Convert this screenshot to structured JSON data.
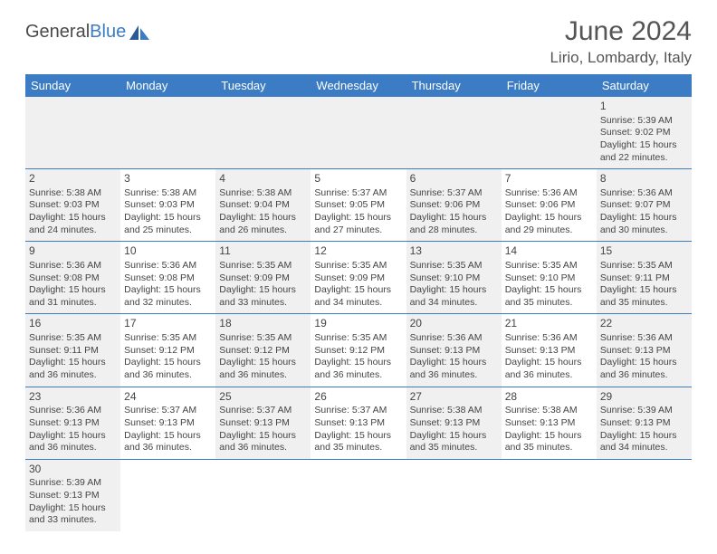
{
  "brand": {
    "part1": "General",
    "part2": "Blue"
  },
  "title": "June 2024",
  "location": "Lirio, Lombardy, Italy",
  "colors": {
    "header_bg": "#3b7cc4",
    "header_text": "#ffffff",
    "row_alt_bg": "#f0f0f0",
    "border": "#3b7cc4",
    "text": "#444444"
  },
  "weekdays": [
    "Sunday",
    "Monday",
    "Tuesday",
    "Wednesday",
    "Thursday",
    "Friday",
    "Saturday"
  ],
  "first_weekday_index": 6,
  "days": [
    {
      "n": 1,
      "sunrise": "5:39 AM",
      "sunset": "9:02 PM",
      "daylight": "15 hours and 22 minutes."
    },
    {
      "n": 2,
      "sunrise": "5:38 AM",
      "sunset": "9:03 PM",
      "daylight": "15 hours and 24 minutes."
    },
    {
      "n": 3,
      "sunrise": "5:38 AM",
      "sunset": "9:03 PM",
      "daylight": "15 hours and 25 minutes."
    },
    {
      "n": 4,
      "sunrise": "5:38 AM",
      "sunset": "9:04 PM",
      "daylight": "15 hours and 26 minutes."
    },
    {
      "n": 5,
      "sunrise": "5:37 AM",
      "sunset": "9:05 PM",
      "daylight": "15 hours and 27 minutes."
    },
    {
      "n": 6,
      "sunrise": "5:37 AM",
      "sunset": "9:06 PM",
      "daylight": "15 hours and 28 minutes."
    },
    {
      "n": 7,
      "sunrise": "5:36 AM",
      "sunset": "9:06 PM",
      "daylight": "15 hours and 29 minutes."
    },
    {
      "n": 8,
      "sunrise": "5:36 AM",
      "sunset": "9:07 PM",
      "daylight": "15 hours and 30 minutes."
    },
    {
      "n": 9,
      "sunrise": "5:36 AM",
      "sunset": "9:08 PM",
      "daylight": "15 hours and 31 minutes."
    },
    {
      "n": 10,
      "sunrise": "5:36 AM",
      "sunset": "9:08 PM",
      "daylight": "15 hours and 32 minutes."
    },
    {
      "n": 11,
      "sunrise": "5:35 AM",
      "sunset": "9:09 PM",
      "daylight": "15 hours and 33 minutes."
    },
    {
      "n": 12,
      "sunrise": "5:35 AM",
      "sunset": "9:09 PM",
      "daylight": "15 hours and 34 minutes."
    },
    {
      "n": 13,
      "sunrise": "5:35 AM",
      "sunset": "9:10 PM",
      "daylight": "15 hours and 34 minutes."
    },
    {
      "n": 14,
      "sunrise": "5:35 AM",
      "sunset": "9:10 PM",
      "daylight": "15 hours and 35 minutes."
    },
    {
      "n": 15,
      "sunrise": "5:35 AM",
      "sunset": "9:11 PM",
      "daylight": "15 hours and 35 minutes."
    },
    {
      "n": 16,
      "sunrise": "5:35 AM",
      "sunset": "9:11 PM",
      "daylight": "15 hours and 36 minutes."
    },
    {
      "n": 17,
      "sunrise": "5:35 AM",
      "sunset": "9:12 PM",
      "daylight": "15 hours and 36 minutes."
    },
    {
      "n": 18,
      "sunrise": "5:35 AM",
      "sunset": "9:12 PM",
      "daylight": "15 hours and 36 minutes."
    },
    {
      "n": 19,
      "sunrise": "5:35 AM",
      "sunset": "9:12 PM",
      "daylight": "15 hours and 36 minutes."
    },
    {
      "n": 20,
      "sunrise": "5:36 AM",
      "sunset": "9:13 PM",
      "daylight": "15 hours and 36 minutes."
    },
    {
      "n": 21,
      "sunrise": "5:36 AM",
      "sunset": "9:13 PM",
      "daylight": "15 hours and 36 minutes."
    },
    {
      "n": 22,
      "sunrise": "5:36 AM",
      "sunset": "9:13 PM",
      "daylight": "15 hours and 36 minutes."
    },
    {
      "n": 23,
      "sunrise": "5:36 AM",
      "sunset": "9:13 PM",
      "daylight": "15 hours and 36 minutes."
    },
    {
      "n": 24,
      "sunrise": "5:37 AM",
      "sunset": "9:13 PM",
      "daylight": "15 hours and 36 minutes."
    },
    {
      "n": 25,
      "sunrise": "5:37 AM",
      "sunset": "9:13 PM",
      "daylight": "15 hours and 36 minutes."
    },
    {
      "n": 26,
      "sunrise": "5:37 AM",
      "sunset": "9:13 PM",
      "daylight": "15 hours and 35 minutes."
    },
    {
      "n": 27,
      "sunrise": "5:38 AM",
      "sunset": "9:13 PM",
      "daylight": "15 hours and 35 minutes."
    },
    {
      "n": 28,
      "sunrise": "5:38 AM",
      "sunset": "9:13 PM",
      "daylight": "15 hours and 35 minutes."
    },
    {
      "n": 29,
      "sunrise": "5:39 AM",
      "sunset": "9:13 PM",
      "daylight": "15 hours and 34 minutes."
    },
    {
      "n": 30,
      "sunrise": "5:39 AM",
      "sunset": "9:13 PM",
      "daylight": "15 hours and 33 minutes."
    }
  ],
  "labels": {
    "sunrise": "Sunrise:",
    "sunset": "Sunset:",
    "daylight": "Daylight:"
  }
}
